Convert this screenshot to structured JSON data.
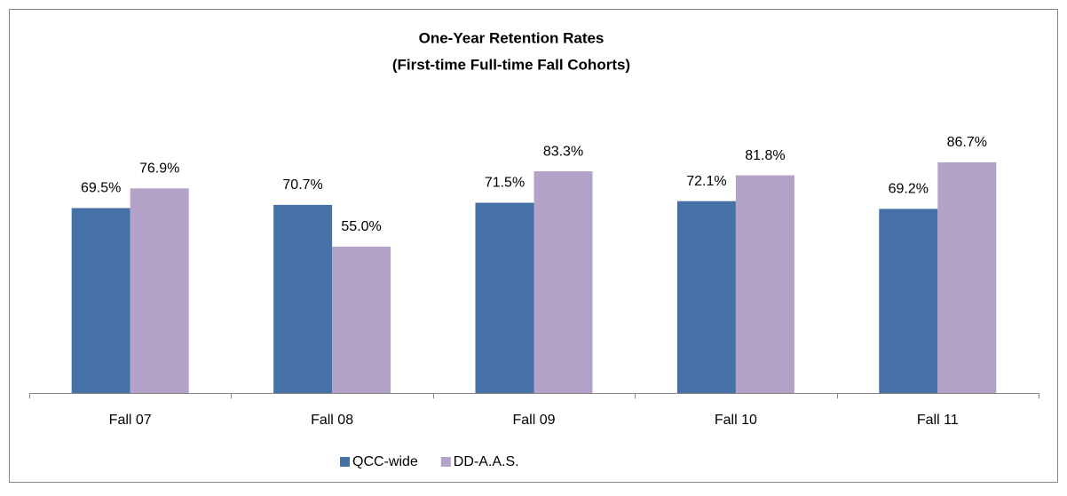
{
  "chart_data": {
    "type": "bar",
    "title": [
      "One-Year Retention Rates",
      "(First-time Full-time Fall Cohorts)"
    ],
    "categories": [
      "Fall 07",
      "Fall 08",
      "Fall 09",
      "Fall 10",
      "Fall 11"
    ],
    "series": [
      {
        "name": "QCC-wide",
        "color": "#4571a6",
        "values": [
          69.5,
          70.7,
          71.5,
          72.1,
          69.2
        ],
        "value_labels": [
          "69.5%",
          "70.7%",
          "71.5%",
          "72.1%",
          "69.2%"
        ]
      },
      {
        "name": "DD-A.A.S.",
        "color": "#b3a2c8",
        "values": [
          76.9,
          55,
          83.3,
          81.8,
          86.7
        ],
        "value_labels": [
          "76.9%",
          "55.0%",
          "83.3%",
          "81.8%",
          "86.7%"
        ]
      }
    ],
    "ylim": [
      0,
      100
    ],
    "legend": "bottom"
  }
}
